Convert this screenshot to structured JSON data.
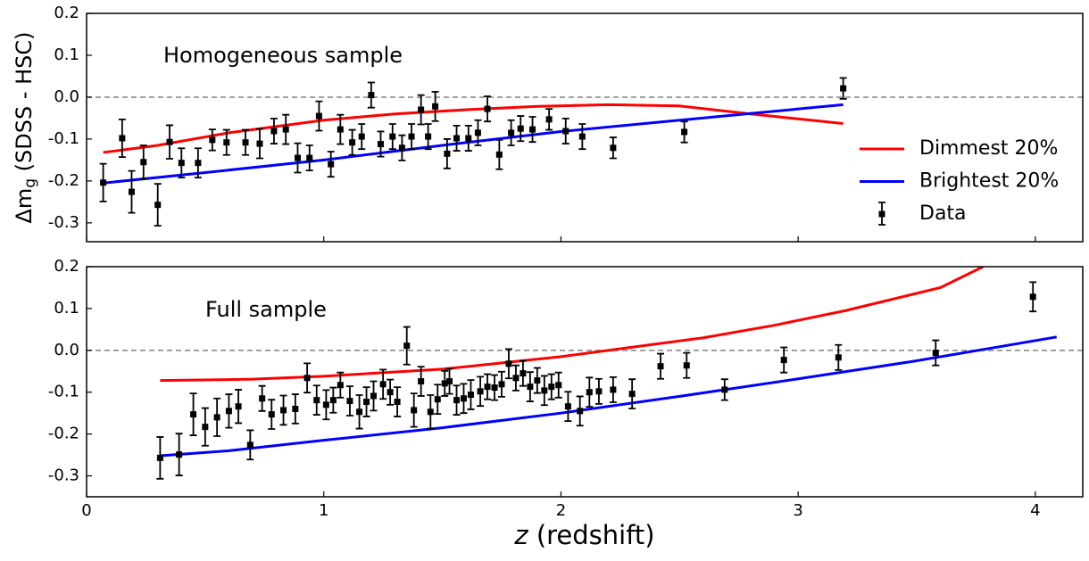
{
  "chart_data": [
    {
      "type": "errorbar-line",
      "annotation": "Homogeneous sample",
      "ylabel": [
        "Δm",
        "g",
        " (SDSS - HSC)"
      ],
      "xlim": [
        0,
        4.2
      ],
      "xticks": [
        0,
        1,
        2,
        3,
        4
      ],
      "show_xtick_labels": false,
      "ylim": [
        -0.345,
        0.2
      ],
      "yticks": [
        -0.3,
        -0.2,
        -0.1,
        0.0,
        0.1,
        0.2
      ],
      "hline": 0,
      "legend": "lower right",
      "series": [
        {
          "name": "Dimmest 20%",
          "kind": "line",
          "color": "#ff0000",
          "x": [
            0.07,
            0.3,
            0.6,
            1.0,
            1.3,
            1.6,
            1.9,
            2.2,
            2.5,
            2.8,
            3.19
          ],
          "values": [
            -0.132,
            -0.115,
            -0.085,
            -0.055,
            -0.04,
            -0.03,
            -0.022,
            -0.018,
            -0.021,
            -0.04,
            -0.063
          ]
        },
        {
          "name": "Brightest 20%",
          "kind": "line",
          "color": "#0000ff",
          "x": [
            0.07,
            0.5,
            1.0,
            1.5,
            2.0,
            2.5,
            3.19
          ],
          "values": [
            -0.205,
            -0.18,
            -0.15,
            -0.115,
            -0.082,
            -0.055,
            -0.018
          ]
        },
        {
          "name": "Data",
          "kind": "errorbar",
          "color": "#000000",
          "x": [
            0.07,
            0.15,
            0.19,
            0.24,
            0.3,
            0.35,
            0.4,
            0.47,
            0.53,
            0.59,
            0.67,
            0.73,
            0.79,
            0.84,
            0.89,
            0.94,
            0.98,
            1.03,
            1.07,
            1.12,
            1.16,
            1.2,
            1.24,
            1.29,
            1.33,
            1.37,
            1.41,
            1.44,
            1.47,
            1.52,
            1.56,
            1.61,
            1.65,
            1.69,
            1.74,
            1.79,
            1.83,
            1.88,
            1.95,
            2.02,
            2.09,
            2.22,
            2.52,
            3.19
          ],
          "values": [
            -0.204,
            -0.098,
            -0.226,
            -0.155,
            -0.257,
            -0.107,
            -0.157,
            -0.157,
            -0.102,
            -0.108,
            -0.108,
            -0.111,
            -0.081,
            -0.077,
            -0.145,
            -0.145,
            -0.045,
            -0.16,
            -0.077,
            -0.108,
            -0.094,
            0.005,
            -0.112,
            -0.094,
            -0.121,
            -0.094,
            -0.03,
            -0.094,
            -0.022,
            -0.135,
            -0.098,
            -0.098,
            -0.085,
            -0.028,
            -0.137,
            -0.085,
            -0.075,
            -0.077,
            -0.053,
            -0.081,
            -0.094,
            -0.121,
            -0.083,
            0.021
          ],
          "errors": [
            0.045,
            0.045,
            0.05,
            0.04,
            0.05,
            0.04,
            0.035,
            0.035,
            0.025,
            0.03,
            0.03,
            0.035,
            0.03,
            0.035,
            0.035,
            0.03,
            0.035,
            0.03,
            0.035,
            0.03,
            0.03,
            0.03,
            0.03,
            0.03,
            0.03,
            0.03,
            0.035,
            0.03,
            0.035,
            0.035,
            0.03,
            0.03,
            0.03,
            0.03,
            0.035,
            0.03,
            0.03,
            0.03,
            0.025,
            0.03,
            0.03,
            0.025,
            0.025,
            0.025
          ]
        }
      ]
    },
    {
      "type": "errorbar-line",
      "annotation": "Full sample",
      "xlabel": [
        "z",
        " (redshift)"
      ],
      "xlim": [
        0,
        4.2
      ],
      "xticks": [
        0,
        1,
        2,
        3,
        4
      ],
      "show_xtick_labels": true,
      "ylim": [
        -0.35,
        0.2
      ],
      "yticks": [
        -0.3,
        -0.2,
        -0.1,
        0.0,
        0.1,
        0.2
      ],
      "hline": 0,
      "series": [
        {
          "kind": "line",
          "color": "#ff0000",
          "x": [
            0.31,
            0.7,
            1.0,
            1.5,
            2.0,
            2.4,
            2.6,
            2.9,
            3.2,
            3.6,
            3.78
          ],
          "values": [
            -0.072,
            -0.069,
            -0.062,
            -0.045,
            -0.015,
            0.015,
            0.03,
            0.06,
            0.095,
            0.15,
            0.2
          ]
        },
        {
          "kind": "line",
          "color": "#0000ff",
          "x": [
            0.31,
            0.6,
            1.0,
            1.5,
            2.0,
            2.5,
            3.0,
            3.5,
            4.09
          ],
          "values": [
            -0.252,
            -0.24,
            -0.215,
            -0.185,
            -0.15,
            -0.11,
            -0.068,
            -0.025,
            0.032
          ]
        },
        {
          "kind": "errorbar",
          "color": "#000000",
          "x": [
            0.31,
            0.39,
            0.45,
            0.5,
            0.55,
            0.6,
            0.64,
            0.69,
            0.74,
            0.78,
            0.83,
            0.88,
            0.93,
            0.97,
            1.01,
            1.04,
            1.07,
            1.11,
            1.15,
            1.18,
            1.21,
            1.25,
            1.28,
            1.31,
            1.35,
            1.38,
            1.41,
            1.45,
            1.48,
            1.51,
            1.53,
            1.56,
            1.59,
            1.62,
            1.66,
            1.69,
            1.72,
            1.75,
            1.78,
            1.81,
            1.84,
            1.87,
            1.9,
            1.93,
            1.96,
            1.99,
            2.03,
            2.08,
            2.12,
            2.16,
            2.22,
            2.3,
            2.42,
            2.53,
            2.69,
            2.94,
            3.17,
            3.58,
            3.99
          ],
          "values": [
            -0.257,
            -0.249,
            -0.153,
            -0.183,
            -0.16,
            -0.145,
            -0.134,
            -0.226,
            -0.115,
            -0.153,
            -0.143,
            -0.14,
            -0.066,
            -0.119,
            -0.13,
            -0.119,
            -0.083,
            -0.121,
            -0.147,
            -0.123,
            -0.109,
            -0.081,
            -0.1,
            -0.123,
            0.011,
            -0.143,
            -0.074,
            -0.147,
            -0.117,
            -0.079,
            -0.074,
            -0.119,
            -0.115,
            -0.106,
            -0.098,
            -0.087,
            -0.089,
            -0.081,
            -0.032,
            -0.066,
            -0.055,
            -0.087,
            -0.072,
            -0.096,
            -0.087,
            -0.083,
            -0.134,
            -0.145,
            -0.1,
            -0.098,
            -0.094,
            -0.104,
            -0.038,
            -0.036,
            -0.094,
            -0.023,
            -0.017,
            -0.006,
            0.128
          ],
          "errors": [
            0.05,
            0.05,
            0.05,
            0.045,
            0.045,
            0.04,
            0.04,
            0.035,
            0.03,
            0.035,
            0.035,
            0.035,
            0.035,
            0.035,
            0.035,
            0.03,
            0.03,
            0.035,
            0.04,
            0.035,
            0.035,
            0.035,
            0.03,
            0.035,
            0.045,
            0.04,
            0.035,
            0.04,
            0.035,
            0.03,
            0.03,
            0.035,
            0.035,
            0.035,
            0.035,
            0.03,
            0.03,
            0.03,
            0.035,
            0.03,
            0.03,
            0.035,
            0.03,
            0.035,
            0.03,
            0.03,
            0.035,
            0.035,
            0.035,
            0.03,
            0.03,
            0.035,
            0.03,
            0.03,
            0.025,
            0.03,
            0.03,
            0.03,
            0.035
          ]
        }
      ]
    }
  ]
}
